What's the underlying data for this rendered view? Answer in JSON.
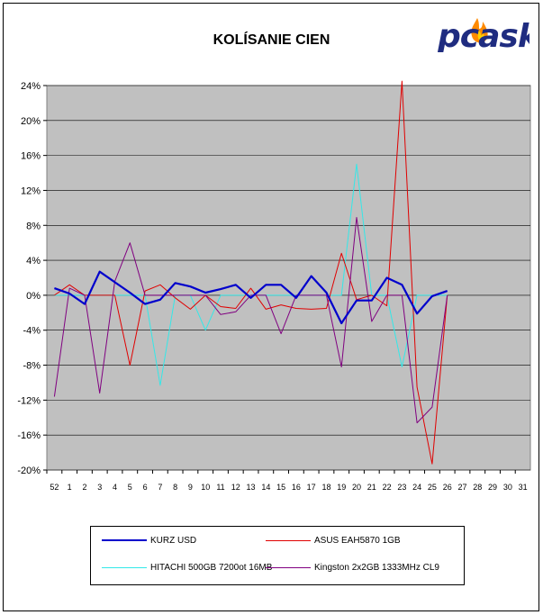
{
  "chart_data": {
    "type": "line",
    "title": "KOLÍSANIE CIEN",
    "categories": [
      "52",
      "1",
      "2",
      "3",
      "4",
      "5",
      "6",
      "7",
      "8",
      "9",
      "10",
      "11",
      "12",
      "13",
      "14",
      "15",
      "16",
      "17",
      "18",
      "19",
      "20",
      "21",
      "22",
      "23",
      "24",
      "25",
      "26",
      "27",
      "28",
      "29",
      "30",
      "31"
    ],
    "ylim": [
      -20,
      24
    ],
    "y_ticks": [
      "24%",
      "20%",
      "16%",
      "12%",
      "8%",
      "4%",
      "0%",
      "-4%",
      "-8%",
      "-12%",
      "-16%",
      "-20%"
    ],
    "y_tick_values": [
      24,
      20,
      16,
      12,
      8,
      4,
      0,
      -4,
      -8,
      -12,
      -16,
      -20
    ],
    "grid": true,
    "legend": "bottom",
    "series": [
      {
        "name": "KURZ USD",
        "color": "#0000cc",
        "width": 2.2,
        "values": [
          0.8,
          0.2,
          -1.0,
          2.7,
          1.5,
          0.3,
          -1.0,
          -0.5,
          1.4,
          1.0,
          0.3,
          0.7,
          1.2,
          -0.3,
          1.2,
          1.2,
          -0.3,
          2.2,
          0.3,
          -3.2,
          -0.6,
          -0.6,
          2.0,
          1.2,
          -2.1,
          -0.1,
          0.5,
          null,
          null,
          null,
          null,
          null
        ]
      },
      {
        "name": "ASUS EAH5870 1GB",
        "color": "#e00000",
        "width": 1,
        "values": [
          0.0,
          1.2,
          0.0,
          0.0,
          0.0,
          -8.0,
          0.5,
          1.2,
          -0.3,
          -1.6,
          0.0,
          -1.3,
          -1.5,
          0.8,
          -1.6,
          -1.1,
          -1.5,
          -1.6,
          -1.5,
          4.8,
          -0.5,
          0.0,
          -1.2,
          24.5,
          -10.5,
          -19.3,
          0.0,
          null,
          null,
          null,
          null,
          null
        ]
      },
      {
        "name": "HITACHI 500GB 7200ot 16MB",
        "color": "#33e8e8",
        "width": 1,
        "values": [
          0.0,
          0.0,
          0.0,
          0.0,
          0.0,
          0.0,
          0.0,
          -10.3,
          0.0,
          0.0,
          -4.0,
          0.0,
          0.0,
          0.0,
          0.0,
          0.0,
          0.0,
          0.0,
          0.0,
          0.0,
          15.0,
          0.0,
          0.0,
          -8.2,
          0.0,
          0.0,
          0.0,
          null,
          null,
          null,
          null,
          null
        ]
      },
      {
        "name": "Kingston 2x2GB 1333MHz CL9",
        "color": "#800080",
        "width": 1,
        "values": [
          -11.6,
          0.8,
          0.0,
          -11.2,
          1.6,
          6.0,
          0.0,
          0.0,
          0.0,
          0.0,
          0.0,
          -2.2,
          -1.9,
          0.0,
          0.0,
          -4.4,
          0.0,
          0.0,
          0.0,
          -8.2,
          8.9,
          -3.0,
          0.0,
          0.0,
          -14.6,
          -12.8,
          0.0,
          null,
          null,
          null,
          null,
          null
        ]
      }
    ]
  },
  "logo": {
    "text": "pcask"
  }
}
